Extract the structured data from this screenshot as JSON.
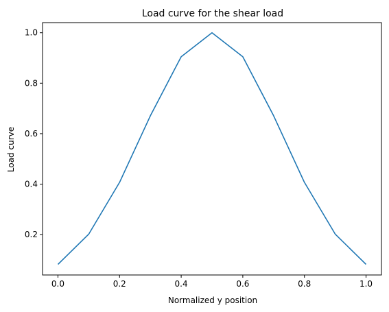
{
  "chart_data": {
    "type": "line",
    "title": "Load curve for the shear load",
    "xlabel": "Normalized y position",
    "ylabel": "Load curve",
    "xlim": [
      -0.05,
      1.05
    ],
    "ylim": [
      0.04,
      1.04
    ],
    "xticks": [
      {
        "value": 0.0,
        "label": "0.0"
      },
      {
        "value": 0.2,
        "label": "0.2"
      },
      {
        "value": 0.4,
        "label": "0.4"
      },
      {
        "value": 0.6,
        "label": "0.6"
      },
      {
        "value": 0.8,
        "label": "0.8"
      },
      {
        "value": 1.0,
        "label": "1.0"
      }
    ],
    "yticks": [
      {
        "value": 0.2,
        "label": "0.2"
      },
      {
        "value": 0.4,
        "label": "0.4"
      },
      {
        "value": 0.6,
        "label": "0.6"
      },
      {
        "value": 0.8,
        "label": "0.8"
      },
      {
        "value": 1.0,
        "label": "1.0"
      }
    ],
    "grid": false,
    "series": [
      {
        "color": "#1f77b4",
        "x": [
          0.0,
          0.1,
          0.2,
          0.3,
          0.4,
          0.5,
          0.6,
          0.7,
          0.8,
          0.9,
          1.0
        ],
        "y": [
          0.082,
          0.202,
          0.407,
          0.671,
          0.905,
          1.0,
          0.905,
          0.671,
          0.407,
          0.202,
          0.082
        ]
      }
    ]
  }
}
